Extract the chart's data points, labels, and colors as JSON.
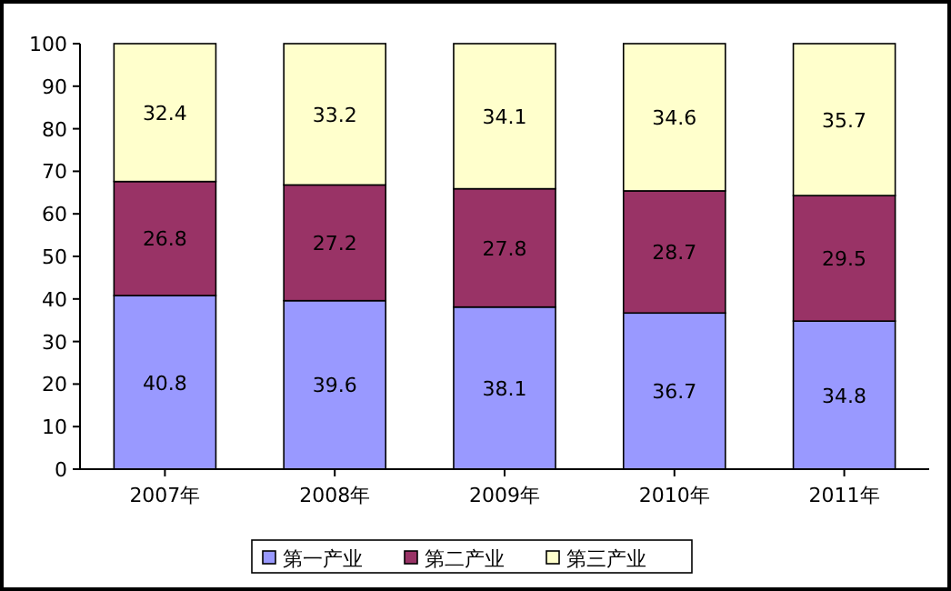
{
  "chart_data": {
    "type": "bar",
    "stacked": true,
    "categories": [
      "2007年",
      "2008年",
      "2009年",
      "2010年",
      "2011年"
    ],
    "series": [
      {
        "name": "第一产业",
        "color": "#9999ff",
        "values": [
          40.8,
          39.6,
          38.1,
          36.7,
          34.8
        ]
      },
      {
        "name": "第二产业",
        "color": "#993366",
        "values": [
          26.8,
          27.2,
          27.8,
          28.7,
          29.5
        ]
      },
      {
        "name": "第三产业",
        "color": "#ffffcc",
        "values": [
          32.4,
          33.2,
          34.1,
          34.6,
          35.7
        ]
      }
    ],
    "ylim": [
      0,
      100
    ],
    "yticks": [
      0,
      10,
      20,
      30,
      40,
      50,
      60,
      70,
      80,
      90,
      100
    ],
    "data_labels": true,
    "grid": false,
    "legend": "bottom"
  }
}
